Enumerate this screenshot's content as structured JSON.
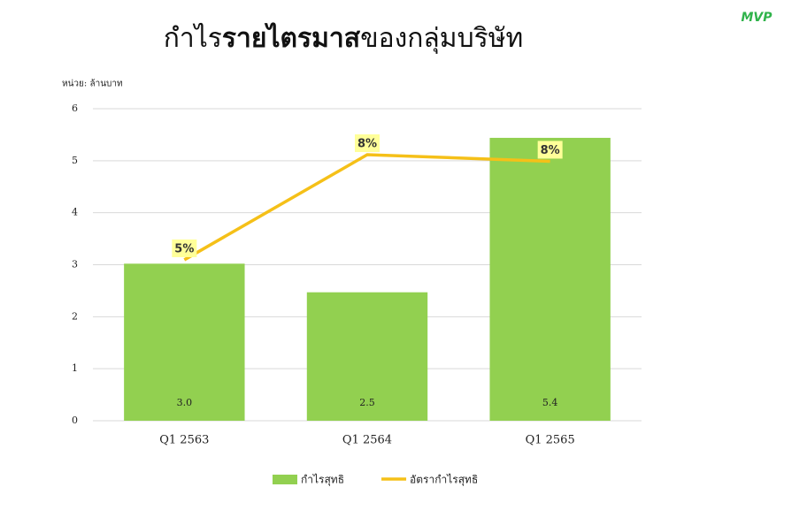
{
  "logo": "MVP",
  "chart_data": {
    "type": "bar-line",
    "title_parts": [
      {
        "text": "กำไร"
      },
      {
        "text": "รายไตรมาส",
        "bold": true
      },
      {
        "text": "ของกลุ่มบริษัท"
      }
    ],
    "unit_label": "หน่วย: ล้านบาท",
    "categories": [
      "Q1 2563",
      "Q1 2564",
      "Q1 2565"
    ],
    "series": [
      {
        "name": "กำไรสุทธิ",
        "type": "bar",
        "color": "#92d050",
        "values": [
          3.02,
          2.47,
          5.44
        ],
        "value_labels": [
          "3.0",
          "2.5",
          "5.4"
        ]
      },
      {
        "name": "อัตรากำไรสุทธิ",
        "type": "line",
        "axis": "y2",
        "color": "#f5c018",
        "values": [
          4.9,
          8.1,
          7.9
        ],
        "value_labels": [
          "5%",
          "8%",
          "8%"
        ]
      }
    ],
    "ylim": [
      0,
      6
    ],
    "yticks": [
      0,
      1,
      2,
      3,
      4,
      5,
      6
    ],
    "y2lim": [
      0,
      9.5
    ],
    "grid": true,
    "legend": "bottom"
  }
}
